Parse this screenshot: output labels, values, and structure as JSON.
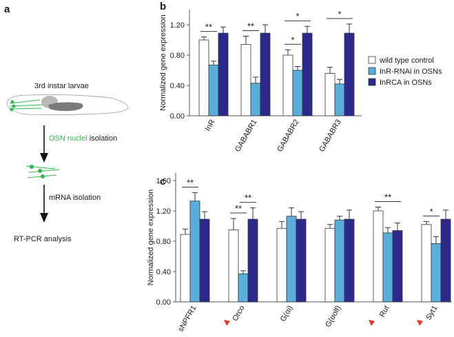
{
  "panel_a": {
    "label": "a",
    "larva": "3rd instar larvae",
    "step1_highlight": "OSN nuclei",
    "step1_rest": " isolation",
    "step2": "mRNA isolation",
    "step3": "RT-PCR analysis"
  },
  "chart_data": [
    {
      "type": "bar",
      "panel_label": "b",
      "y_label": "Normalized gene expression",
      "categories": [
        "InR",
        "GABABR1",
        "GABABR2",
        "GABABR3"
      ],
      "series": [
        {
          "name": "wild type control",
          "color": "#ffffff",
          "values": [
            1.0,
            0.94,
            0.8,
            0.56
          ],
          "errors": [
            0.04,
            0.11,
            0.07,
            0.08
          ]
        },
        {
          "name": "InR-RNAi in OSNs",
          "color": "#5aaed9",
          "values": [
            0.67,
            0.43,
            0.6,
            0.42
          ],
          "errors": [
            0.05,
            0.08,
            0.05,
            0.06
          ]
        },
        {
          "name": "InRCA in OSNs",
          "color": "#2d2a8e",
          "values": [
            1.09,
            1.09,
            1.09,
            1.09
          ],
          "errors": [
            0.08,
            0.11,
            0.09,
            0.12
          ]
        }
      ],
      "ylim": [
        0,
        1.4
      ],
      "yticks": [
        {
          "value": 0,
          "label": "0.00"
        },
        {
          "value": 0.4,
          "label": "0.40"
        },
        {
          "value": 0.8,
          "label": "0.80"
        },
        {
          "value": 1.2,
          "label": "1.20"
        }
      ],
      "legend": true,
      "annotations": [
        {
          "category": 0,
          "from": 0,
          "to": 1,
          "label": "**"
        },
        {
          "category": 1,
          "from": 0,
          "to": 1,
          "label": "**"
        },
        {
          "category": 2,
          "from": 0,
          "to": 1,
          "label": "*"
        },
        {
          "category": 2,
          "from": 0,
          "to": 2,
          "label": "*"
        },
        {
          "category": 3,
          "from": 0,
          "to": 2,
          "label": "*"
        }
      ]
    },
    {
      "type": "bar",
      "panel_label": "c",
      "y_label": "Normalized gene expression",
      "categories": [
        "sNPFR1",
        "Orco",
        "G(αi)",
        "G(αolf)",
        "Rut",
        "Syt1"
      ],
      "series": [
        {
          "name": "wild type control",
          "color": "#ffffff",
          "values": [
            0.89,
            0.95,
            0.97,
            0.97,
            1.2,
            1.02
          ],
          "errors": [
            0.07,
            0.15,
            0.09,
            0.05,
            0.05,
            0.04
          ]
        },
        {
          "name": "InR-RNAi in OSNs",
          "color": "#5aaed9",
          "values": [
            1.33,
            0.37,
            1.13,
            1.08,
            0.91,
            0.77
          ],
          "errors": [
            0.11,
            0.04,
            0.11,
            0.05,
            0.07,
            0.09
          ]
        },
        {
          "name": "InRCA in OSNs",
          "color": "#2d2a8e",
          "values": [
            1.09,
            1.09,
            1.09,
            1.09,
            0.94,
            1.09
          ],
          "errors": [
            0.1,
            0.15,
            0.1,
            0.12,
            0.1,
            0.12
          ]
        }
      ],
      "ylim": [
        0,
        1.7
      ],
      "yticks": [
        {
          "value": 0,
          "label": "0.00"
        },
        {
          "value": 0.4,
          "label": "0.40"
        },
        {
          "value": 0.8,
          "label": "0.80"
        },
        {
          "value": 1.2,
          "label": "1.20"
        },
        {
          "value": 1.6,
          "label": "1.60"
        }
      ],
      "legend": false,
      "highlighted_categories": [
        1,
        4,
        5
      ],
      "highlight_color": "#e0392b",
      "annotations": [
        {
          "category": 0,
          "from": 0,
          "to": 1,
          "label": "**"
        },
        {
          "category": 1,
          "from": 0,
          "to": 1,
          "label": "**"
        },
        {
          "category": 1,
          "from": 1,
          "to": 2,
          "label": "**"
        },
        {
          "category": 4,
          "from": 0,
          "to": 2,
          "label": "**"
        },
        {
          "category": 5,
          "from": 0,
          "to": 1,
          "label": "*"
        }
      ]
    }
  ]
}
